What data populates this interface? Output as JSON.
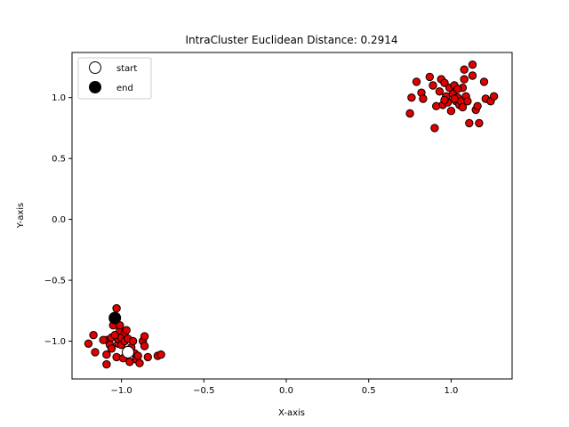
{
  "chart_data": {
    "type": "scatter",
    "title": "IntraCluster Euclidean Distance: 0.2914",
    "xlabel": "X-axis",
    "ylabel": "Y-axis",
    "xlim": [
      -1.3,
      1.37
    ],
    "ylim": [
      -1.31,
      1.37
    ],
    "xticks": [
      -1.0,
      -0.5,
      0.0,
      0.5,
      1.0
    ],
    "xtick_labels": [
      "−1.0",
      "−0.5",
      "0.0",
      "0.5",
      "1.0"
    ],
    "yticks": [
      -1.0,
      -0.5,
      0.0,
      0.5,
      1.0
    ],
    "ytick_labels": [
      "−1.0",
      "−0.5",
      "0.0",
      "0.5",
      "1.0"
    ],
    "grid": false,
    "legend_position": "upper-left",
    "legend": [
      {
        "label": "start",
        "marker": "open-circle"
      },
      {
        "label": "end",
        "marker": "filled-circle"
      }
    ],
    "point_color": "#e00000",
    "edge_color": "#000000",
    "points": [
      [
        -1.2,
        -1.02
      ],
      [
        -1.17,
        -0.95
      ],
      [
        -1.16,
        -1.09
      ],
      [
        -1.09,
        -1.11
      ],
      [
        -1.09,
        -1.19
      ],
      [
        -1.09,
        -0.99
      ],
      [
        -1.07,
        -1.03
      ],
      [
        -1.06,
        -0.97
      ],
      [
        -1.05,
        -0.87
      ],
      [
        -1.04,
        -0.82
      ],
      [
        -1.03,
        -0.73
      ],
      [
        -1.03,
        -1.13
      ],
      [
        -1.02,
        -1.02
      ],
      [
        -1.02,
        -0.98
      ],
      [
        -1.01,
        -0.91
      ],
      [
        -1.01,
        -0.87
      ],
      [
        -1.0,
        -0.97
      ],
      [
        -1.0,
        -1.03
      ],
      [
        -0.99,
        -1.14
      ],
      [
        -0.98,
        -1.0
      ],
      [
        -0.98,
        -0.93
      ],
      [
        -0.97,
        -0.91
      ],
      [
        -0.96,
        -0.98
      ],
      [
        -0.95,
        -1.17
      ],
      [
        -0.94,
        -1.05
      ],
      [
        -0.93,
        -1.0
      ],
      [
        -0.92,
        -1.1
      ],
      [
        -0.91,
        -1.15
      ],
      [
        -0.9,
        -1.12
      ],
      [
        -0.89,
        -1.18
      ],
      [
        -0.87,
        -1.0
      ],
      [
        -0.86,
        -0.96
      ],
      [
        -0.86,
        -1.04
      ],
      [
        -0.84,
        -1.13
      ],
      [
        -0.78,
        -1.12
      ],
      [
        -0.76,
        -1.11
      ],
      [
        -1.11,
        -0.99
      ],
      [
        -1.04,
        -0.95
      ],
      [
        -0.97,
        -1.08
      ],
      [
        -1.06,
        -1.06
      ],
      [
        0.75,
        0.87
      ],
      [
        0.76,
        1.0
      ],
      [
        0.79,
        1.13
      ],
      [
        0.82,
        1.04
      ],
      [
        0.83,
        0.99
      ],
      [
        0.87,
        1.17
      ],
      [
        0.89,
        1.1
      ],
      [
        0.9,
        0.75
      ],
      [
        0.91,
        0.93
      ],
      [
        0.93,
        1.05
      ],
      [
        0.94,
        1.15
      ],
      [
        0.95,
        0.94
      ],
      [
        0.96,
        1.12
      ],
      [
        0.97,
        1.01
      ],
      [
        0.98,
        0.96
      ],
      [
        0.99,
        1.08
      ],
      [
        1.0,
        0.89
      ],
      [
        1.01,
        1.03
      ],
      [
        1.02,
        1.1
      ],
      [
        1.03,
        0.97
      ],
      [
        1.04,
        1.0
      ],
      [
        1.05,
        0.94
      ],
      [
        1.06,
        0.97
      ],
      [
        1.07,
        0.92
      ],
      [
        1.07,
        1.08
      ],
      [
        1.08,
        1.23
      ],
      [
        1.08,
        1.15
      ],
      [
        1.09,
        1.01
      ],
      [
        1.1,
        0.97
      ],
      [
        1.11,
        0.79
      ],
      [
        1.13,
        1.27
      ],
      [
        1.13,
        1.18
      ],
      [
        1.15,
        0.9
      ],
      [
        1.16,
        0.93
      ],
      [
        1.17,
        0.79
      ],
      [
        1.2,
        1.13
      ],
      [
        1.21,
        0.99
      ],
      [
        1.24,
        0.97
      ],
      [
        1.26,
        1.01
      ],
      [
        0.96,
        0.98
      ],
      [
        1.02,
        0.99
      ],
      [
        1.04,
        1.07
      ]
    ],
    "start": [
      -0.96,
      -1.09
    ],
    "end": [
      -1.04,
      -0.81
    ]
  }
}
